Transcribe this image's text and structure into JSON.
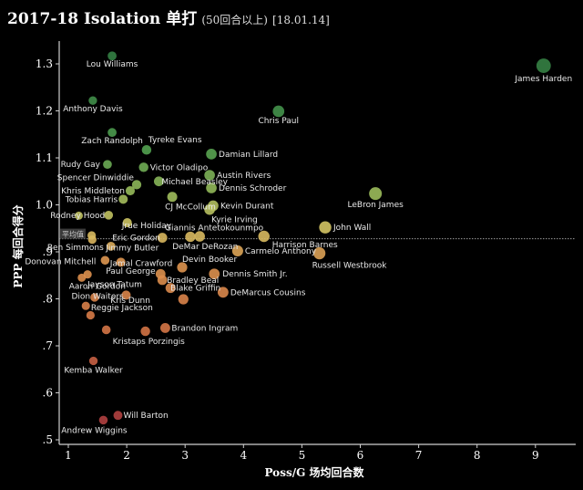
{
  "title": {
    "main": "2017-18 Isolation 单打",
    "qualifier": "(50回合以上)",
    "date": "[18.01.14]"
  },
  "chart_data": {
    "type": "scatter",
    "title": "2017-18 Isolation 单打 (50回合以上) [18.01.14]",
    "xlabel": "Poss/G 场均回合数",
    "ylabel": "PPP 每回合得分",
    "xlim": [
      0.6,
      9.7
    ],
    "ylim": [
      0.48,
      1.36
    ],
    "xticks": [
      "1",
      "2",
      "3",
      "4",
      "5",
      "6",
      "7",
      "8",
      "9"
    ],
    "yticks": [
      {
        "v": 1.3,
        "label": "1.3"
      },
      {
        "v": 1.2,
        "label": "1.2"
      },
      {
        "v": 1.1,
        "label": "1.1"
      },
      {
        "v": 1.0,
        "label": "1.0"
      },
      {
        "v": 0.9,
        "label": ".9"
      },
      {
        "v": 0.8,
        "label": ".8"
      },
      {
        "v": 0.7,
        "label": ".7"
      },
      {
        "v": 0.6,
        "label": ".6"
      },
      {
        "v": 0.5,
        "label": ".5"
      }
    ],
    "reference_line": {
      "label": "平均值",
      "value": 0.928
    },
    "grid": false,
    "color_scale": "PPP: high=green, mid=yellow, low=orange/red",
    "points": [
      {
        "name": "Lou Williams",
        "x": 1.75,
        "y": 1.317
      },
      {
        "name": "Anthony Davis",
        "x": 1.42,
        "y": 1.222
      },
      {
        "name": "James Harden",
        "x": 9.14,
        "y": 1.296
      },
      {
        "name": "Chris Paul",
        "x": 4.6,
        "y": 1.199
      },
      {
        "name": "Zach Randolph",
        "x": 1.75,
        "y": 1.154
      },
      {
        "name": "Tyreke Evans",
        "x": 2.34,
        "y": 1.117
      },
      {
        "name": "Damian Lillard",
        "x": 3.45,
        "y": 1.108
      },
      {
        "name": "Rudy Gay",
        "x": 1.67,
        "y": 1.086
      },
      {
        "name": "Victor Oladipo",
        "x": 2.29,
        "y": 1.08
      },
      {
        "name": "Austin Rivers",
        "x": 3.42,
        "y": 1.063
      },
      {
        "name": "Spencer Dinwiddie",
        "x": 2.17,
        "y": 1.043
      },
      {
        "name": "Michael Beasley",
        "x": 2.55,
        "y": 1.05
      },
      {
        "name": "Dennis Schroder",
        "x": 3.45,
        "y": 1.036
      },
      {
        "name": "Khris Middleton",
        "x": 2.06,
        "y": 1.03
      },
      {
        "name": "LeBron James",
        "x": 6.26,
        "y": 1.024
      },
      {
        "name": "Tobias Harris",
        "x": 1.94,
        "y": 1.012
      },
      {
        "name": "CJ McCollum",
        "x": 2.78,
        "y": 1.017
      },
      {
        "name": "Kevin Durant",
        "x": 3.48,
        "y": 0.998
      },
      {
        "name": "Kyrie Irving",
        "x": 3.42,
        "y": 0.99
      },
      {
        "name": "Rodney Hood",
        "x": 1.69,
        "y": 0.978
      },
      {
        "name": "Jrue Holiday",
        "x": 2.01,
        "y": 0.962
      },
      {
        "name": "John Wall",
        "x": 5.4,
        "y": 0.952
      },
      {
        "name": "Giannis Antetokounmpo",
        "x": 3.09,
        "y": 0.932
      },
      {
        "name": "Harrison Barnes",
        "x": 4.35,
        "y": 0.933
      },
      {
        "name": "Eric Gordon",
        "x": 2.61,
        "y": 0.93
      },
      {
        "name": "DeMar DeRozan",
        "x": 3.25,
        "y": 0.933
      },
      {
        "name": "Jimmy Butler",
        "x": 1.41,
        "y": 0.926
      },
      {
        "name": "Ben Simmons",
        "x": 1.73,
        "y": 0.912
      },
      {
        "name": "Carmelo Anthony",
        "x": 3.9,
        "y": 0.902
      },
      {
        "name": "Russell Westbrook",
        "x": 5.3,
        "y": 0.897
      },
      {
        "name": "Donovan Mitchell",
        "x": 1.63,
        "y": 0.882
      },
      {
        "name": "Jamal Crawford",
        "x": 1.9,
        "y": 0.878
      },
      {
        "name": "Devin Booker",
        "x": 2.95,
        "y": 0.867
      },
      {
        "name": "Paul George",
        "x": 2.58,
        "y": 0.853
      },
      {
        "name": "Dennis Smith Jr.",
        "x": 3.5,
        "y": 0.853
      },
      {
        "name": "Bradley Beal",
        "x": 2.61,
        "y": 0.84
      },
      {
        "name": "Jayson Tatum",
        "x": 1.33,
        "y": 0.852
      },
      {
        "name": "Aaron Gordon",
        "x": 1.23,
        "y": 0.845
      },
      {
        "name": "Blake Griffin",
        "x": 2.75,
        "y": 0.823
      },
      {
        "name": "DeMarcus Cousins",
        "x": 3.65,
        "y": 0.814
      },
      {
        "name": "Reggie Jackson",
        "x": 1.45,
        "y": 0.803
      },
      {
        "name": "Dion Waiters",
        "x": 1.99,
        "y": 0.808
      },
      {
        "name": "Kris Dunn",
        "x": 2.97,
        "y": 0.799
      },
      {
        "name": "Brandon Ingram",
        "x": 2.66,
        "y": 0.738
      },
      {
        "name": "Kristaps Porzingis",
        "x": 2.32,
        "y": 0.731
      },
      {
        "name": "Kemba Walker",
        "x": 1.43,
        "y": 0.668
      },
      {
        "name": "Will Barton",
        "x": 1.85,
        "y": 0.552
      },
      {
        "name": "Andrew Wiggins",
        "x": 1.6,
        "y": 0.542
      },
      {
        "name": "",
        "x": 1.3,
        "y": 0.785
      },
      {
        "name": "",
        "x": 1.38,
        "y": 0.765
      },
      {
        "name": "",
        "x": 1.65,
        "y": 0.734
      },
      {
        "name": "",
        "x": 1.18,
        "y": 0.977
      },
      {
        "name": "",
        "x": 1.4,
        "y": 0.935
      }
    ]
  }
}
